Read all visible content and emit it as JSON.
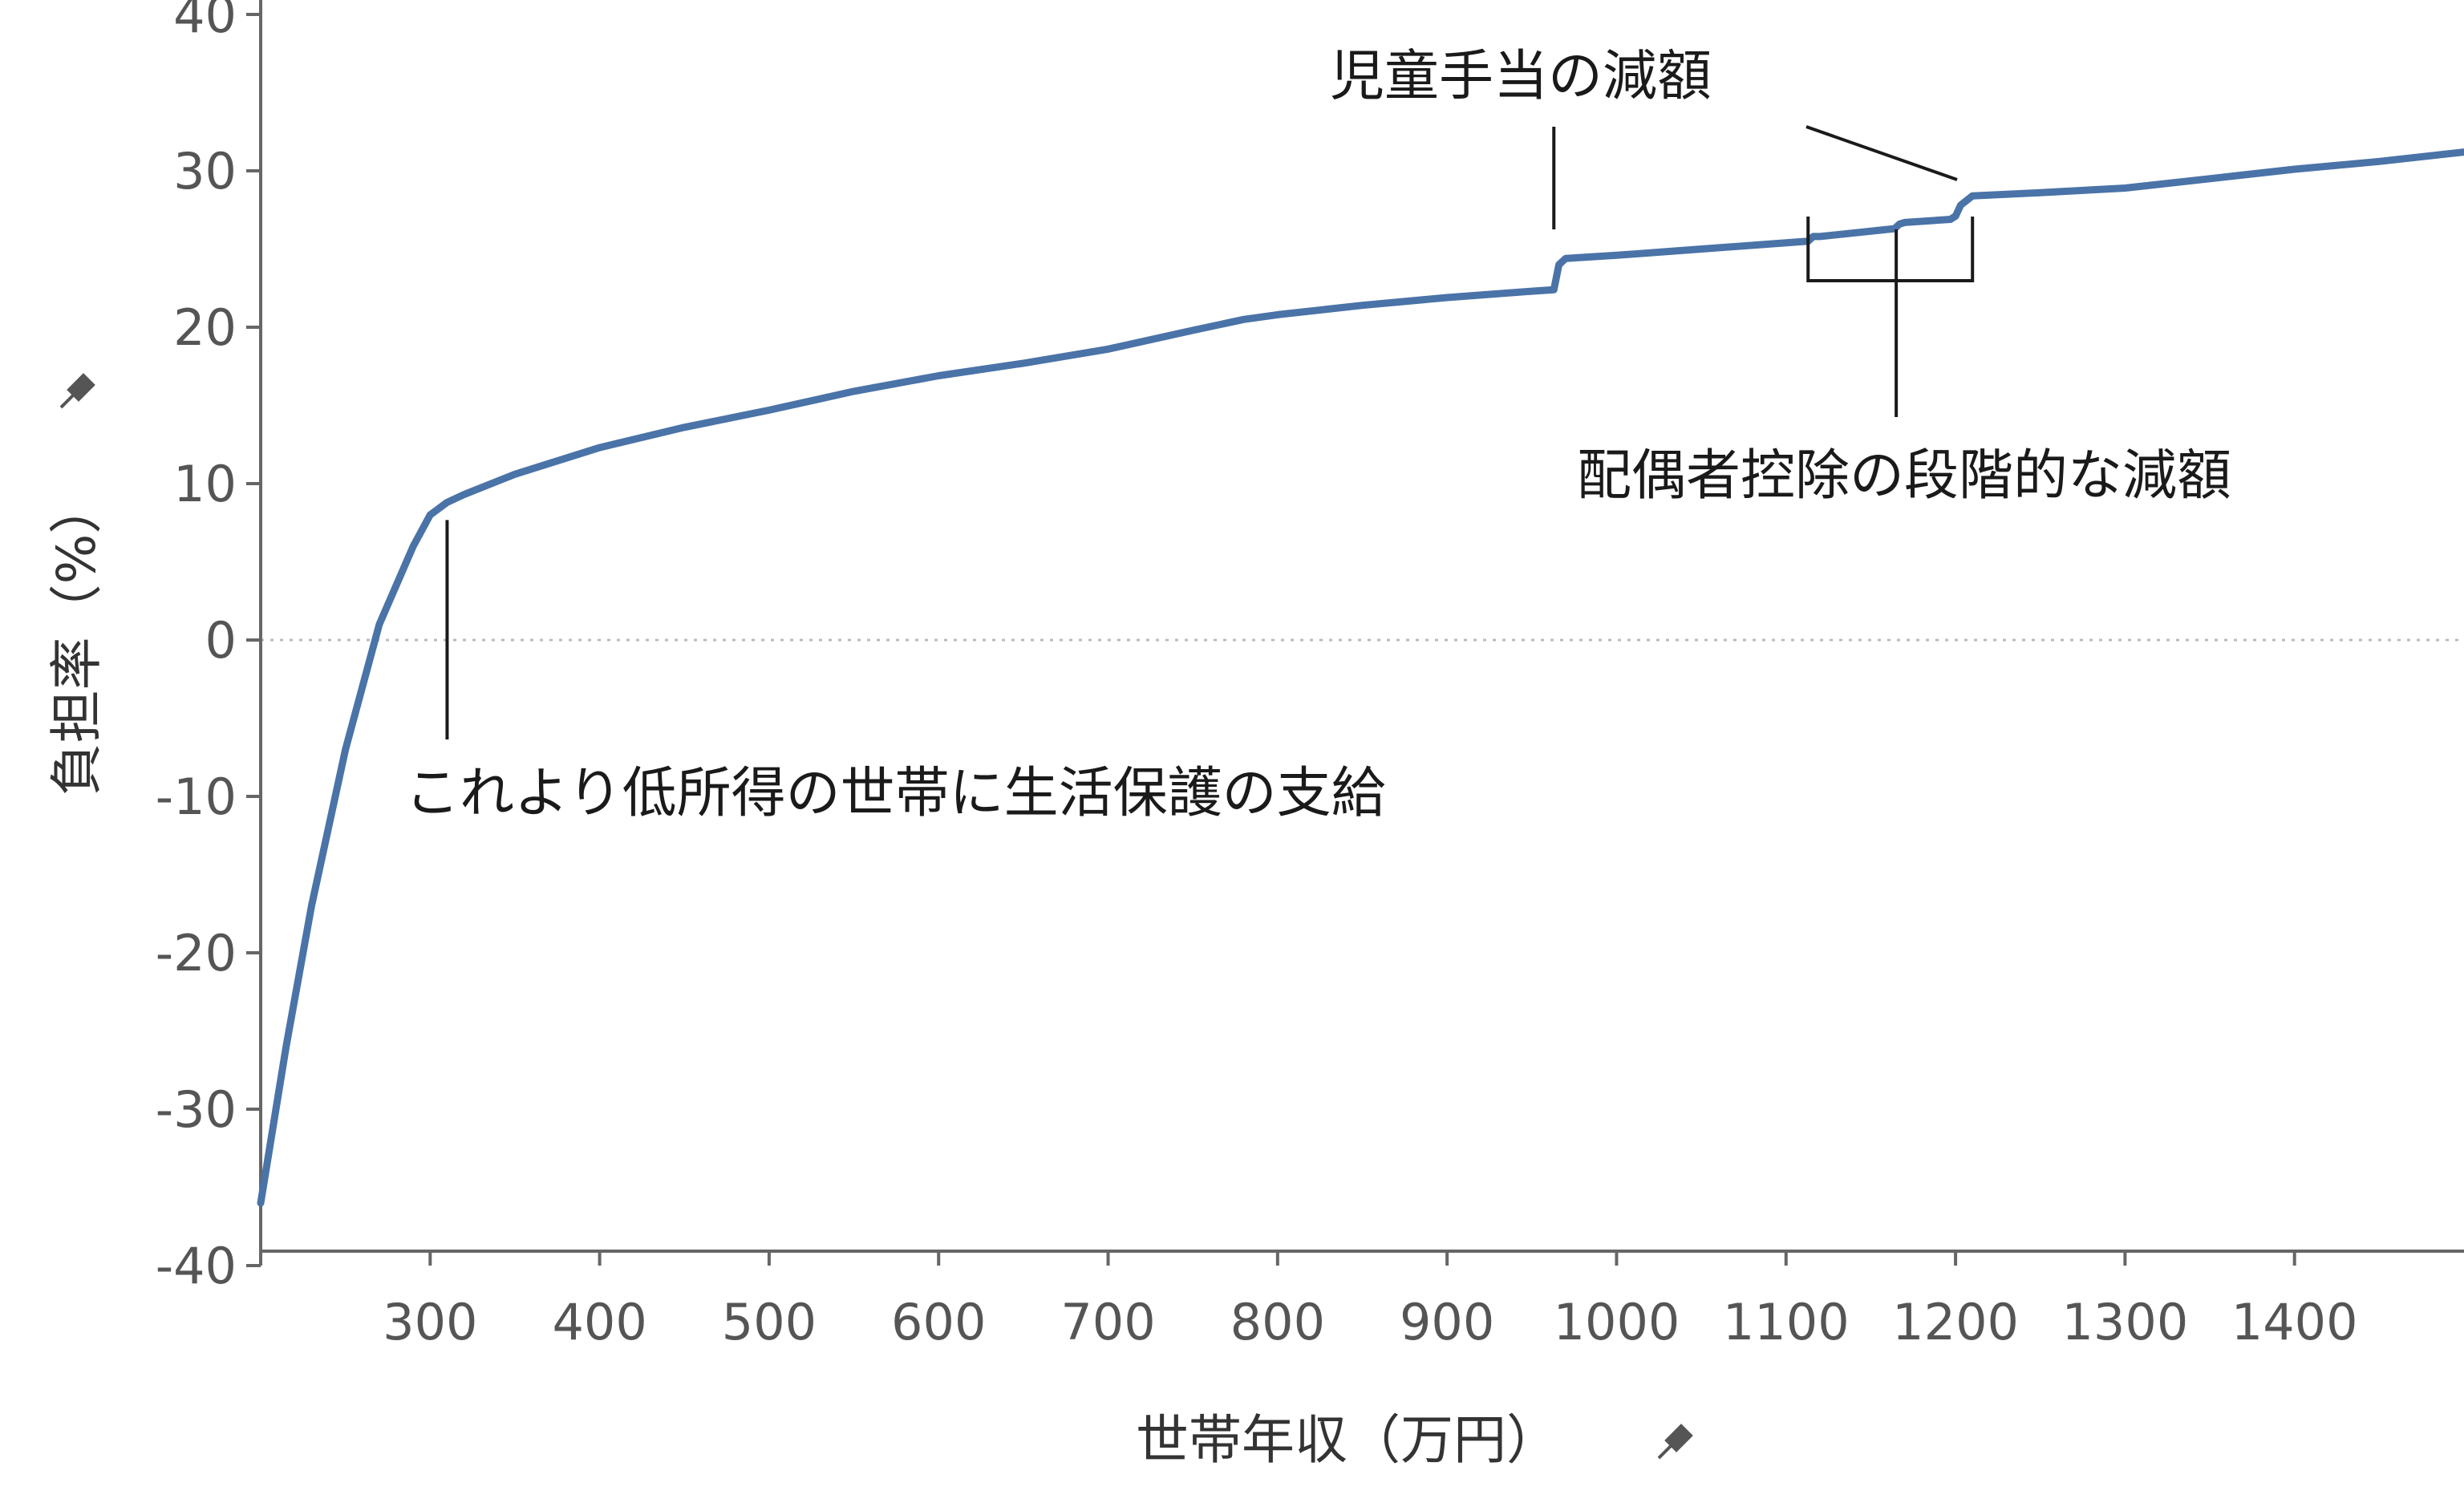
{
  "chart_data": {
    "type": "line",
    "title": "",
    "xlabel": "世帯年収（万円）",
    "ylabel": "負担率（%）",
    "xlim": [
      200,
      1500
    ],
    "ylim": [
      -40,
      40
    ],
    "x_ticks": [
      300,
      400,
      500,
      600,
      700,
      800,
      900,
      1000,
      1100,
      1200,
      1300,
      1400
    ],
    "y_ticks": [
      40,
      30,
      20,
      10,
      0,
      -10,
      -20,
      -30,
      -40
    ],
    "x_tick_labels": [
      "300",
      "400",
      "500",
      "600",
      "700",
      "800",
      "900",
      "1000",
      "1100",
      "1200",
      "1300",
      "1400"
    ],
    "y_tick_labels": [
      "40",
      "30",
      "20",
      "10",
      "0",
      "-10",
      "-20",
      "-30",
      "-40"
    ],
    "zero_line": true,
    "grid": false,
    "series": [
      {
        "color": "#4a73a8",
        "x": [
          200,
          215,
          230,
          250,
          270,
          290,
          300,
          310,
          320,
          350,
          400,
          450,
          500,
          550,
          600,
          650,
          700,
          750,
          780,
          800,
          850,
          900,
          950,
          963,
          966,
          970,
          1000,
          1050,
          1100,
          1113,
          1116,
          1120,
          1164,
          1167,
          1170,
          1197,
          1200,
          1203,
          1210,
          1250,
          1300,
          1350,
          1400,
          1450,
          1500
        ],
        "y": [
          -36,
          -26,
          -17,
          -7,
          1,
          6,
          8,
          8.8,
          9.3,
          10.6,
          12.3,
          13.6,
          14.7,
          15.9,
          16.9,
          17.7,
          18.6,
          19.8,
          20.5,
          20.8,
          21.4,
          21.9,
          22.3,
          22.4,
          24,
          24.4,
          24.6,
          25.0,
          25.4,
          25.5,
          25.8,
          25.8,
          26.3,
          26.6,
          26.7,
          26.9,
          27.1,
          27.8,
          28.4,
          28.6,
          28.9,
          29.5,
          30.1,
          30.6,
          31.2
        ]
      }
    ],
    "annotations": [
      {
        "text": "これより低所得の世帯に生活保護の支給",
        "x": 310,
        "y": 8.8
      },
      {
        "text": "児童手当の減額",
        "x": 963,
        "y": 24.4
      },
      {
        "text": "配偶者控除の段階的な減額",
        "x": 1165,
        "y": 26.5
      }
    ],
    "pin_icons": [
      "pin-icon",
      "pin-icon"
    ]
  }
}
